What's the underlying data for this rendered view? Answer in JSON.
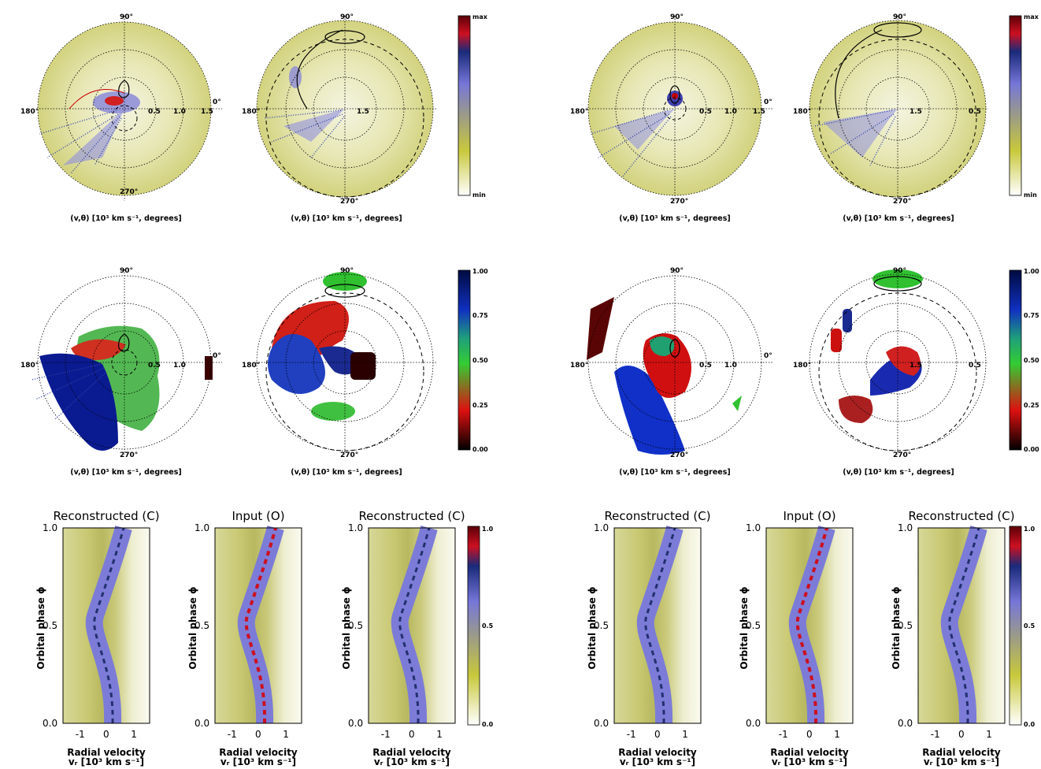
{
  "polar": {
    "angle_labels": {
      "top": "90°",
      "left": "180°",
      "bottom": "270°",
      "right": "0°"
    },
    "ring_labels": [
      "0.5",
      "1.0",
      "1.5"
    ],
    "ring_labels_shifted": [
      "0.5",
      "1.0",
      "1.5",
      "0.5"
    ],
    "caption": "(v,θ) [10³ km s⁻¹, degrees]"
  },
  "colorbars": {
    "intensity": {
      "top": "max",
      "bottom": "min"
    },
    "fraction": {
      "ticks": [
        "1.00",
        "0.75",
        "0.50",
        "0.25",
        "0.00"
      ]
    },
    "trailed": {
      "ticks": [
        "1.0",
        "0.5",
        "0.0"
      ]
    }
  },
  "trailed": {
    "titles": [
      "Reconstructed (C)",
      "Input (O)",
      "Reconstructed (C)",
      "Reconstructed (C)",
      "Input (O)",
      "Reconstructed (C)"
    ],
    "ylabel": "Orbital phase ϕ",
    "yticks": [
      "1.0",
      "0.5",
      "0.0"
    ],
    "xticks": [
      "-1",
      "0",
      "1"
    ],
    "xlabel_line1": "Radial velocity",
    "xlabel_line2": "vᵣ [10³ km s⁻¹]"
  },
  "colors": {
    "yellow": "#c8c85a",
    "blue": "#7f7fd8",
    "red": "#e0101a",
    "green": "#33cc33",
    "navy": "#001a8c",
    "maroon": "#4a0000"
  }
}
